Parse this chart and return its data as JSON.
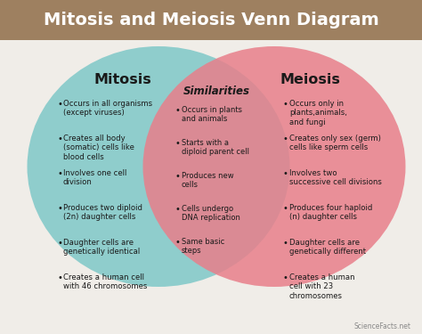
{
  "title": "Mitosis and Meiosis Venn Diagram",
  "title_bg": "#9e8060",
  "title_color": "white",
  "bg_color": "#f0ede8",
  "left_circle_color": "#7ec8c8",
  "right_circle_color": "#e87f8a",
  "left_label": "Mitosis",
  "right_label": "Meiosis",
  "center_label": "Similarities",
  "left_items": [
    "Occurs in all organisms\n(except viruses)",
    "Creates all body\n(somatic) cells like\nblood cells",
    "Involves one cell\ndivision",
    "Produces two diploid\n(2n) daughter cells",
    "Daughter cells are\ngenetically identical",
    "Creates a human cell\nwith 46 chromosomes"
  ],
  "center_items": [
    "Occurs in plants\nand animals",
    "Starts with a\ndiploid parent cell",
    "Produces new\ncells",
    "Cells undergo\nDNA replication",
    "Same basic\nsteps"
  ],
  "right_items": [
    "Occurs only in\nplants,animals,\nand fungi",
    "Creates only sex (germ)\ncells like sperm cells",
    "Involves two\nsuccessive cell divisions",
    "Produces four haploid\n(n) daughter cells",
    "Daughter cells are\ngenetically different",
    "Creates a human\ncell with 23\nchromosomes"
  ],
  "watermark": "ScienceFacts.net"
}
